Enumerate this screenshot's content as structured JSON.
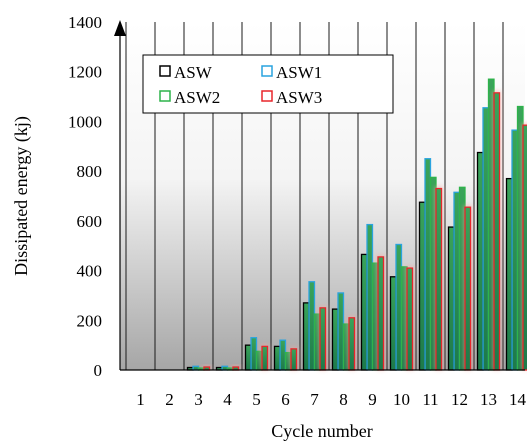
{
  "chart_data": {
    "type": "bar",
    "title": "",
    "xlabel": "Cycle number",
    "ylabel": "Dissipated energy (kj)",
    "ylim": [
      0,
      1400
    ],
    "yticks": [
      0,
      200,
      400,
      600,
      800,
      1000,
      1200,
      1400
    ],
    "categories": [
      "1",
      "2",
      "3",
      "4",
      "5",
      "6",
      "7",
      "8",
      "9",
      "10",
      "11",
      "12",
      "13",
      "14"
    ],
    "grid": "vertical",
    "legend": "top-left",
    "series": [
      {
        "name": "ASW",
        "color": "#000000",
        "values": [
          0,
          0,
          10,
          10,
          100,
          95,
          270,
          245,
          465,
          375,
          675,
          575,
          875,
          770
        ]
      },
      {
        "name": "ASW1",
        "color": "#29a3df",
        "values": [
          0,
          0,
          15,
          15,
          130,
          120,
          355,
          310,
          585,
          505,
          850,
          715,
          1055,
          965
        ]
      },
      {
        "name": "ASW2",
        "color": "#2db34a",
        "values": [
          0,
          0,
          8,
          8,
          75,
          70,
          225,
          185,
          430,
          415,
          775,
          735,
          1170,
          1060
        ]
      },
      {
        "name": "ASW3",
        "color": "#e8262b",
        "values": [
          0,
          0,
          12,
          12,
          95,
          85,
          250,
          210,
          455,
          410,
          730,
          655,
          1115,
          985
        ]
      }
    ]
  }
}
